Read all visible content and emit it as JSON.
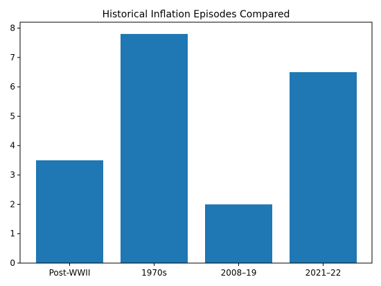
{
  "chart_data": {
    "type": "bar",
    "title": "Historical Inflation Episodes Compared",
    "xlabel": "",
    "ylabel": "",
    "categories": [
      "Post-WWII",
      "1970s",
      "2008–19",
      "2021–22"
    ],
    "values": [
      3.5,
      7.8,
      2.0,
      6.5
    ],
    "ylim": [
      0,
      8.2
    ],
    "yticks": [
      0,
      1,
      2,
      3,
      4,
      5,
      6,
      7,
      8
    ],
    "bar_color": "#1f77b4",
    "grid": false,
    "legend": false
  }
}
